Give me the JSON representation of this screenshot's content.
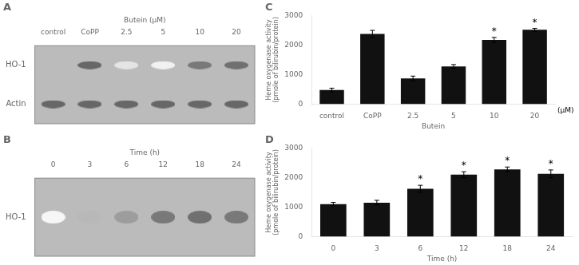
{
  "chart_data": [
    {
      "type": "heatmap",
      "title": "A",
      "categories": [
        "control",
        "CoPP",
        "2.5",
        "5",
        "10",
        "20"
      ],
      "xlabel": "Butein (μM)",
      "rows": [
        "HO-1",
        "Actin"
      ],
      "cells": [
        [
          0.0,
          0.85,
          0.15,
          0.08,
          0.75,
          0.8
        ],
        [
          0.85,
          0.85,
          0.85,
          0.85,
          0.85,
          0.85
        ]
      ],
      "grid": false
    },
    {
      "type": "heatmap",
      "title": "B",
      "categories": [
        "0",
        "3",
        "6",
        "12",
        "18",
        "24"
      ],
      "xlabel": "Time (h)",
      "rows": [
        "HO-1"
      ],
      "cells": [
        [
          0.05,
          0.4,
          0.55,
          0.75,
          0.8,
          0.75
        ]
      ],
      "grid": false
    },
    {
      "type": "bar",
      "title": "C",
      "categories": [
        "control",
        "CoPP",
        "2.5",
        "5",
        "10",
        "20"
      ],
      "values": [
        480,
        2380,
        870,
        1280,
        2180,
        2520
      ],
      "errors": [
        60,
        120,
        80,
        60,
        80,
        50
      ],
      "color": "#111111",
      "ylabel": "Heme oxygenase activity\n(pmole of bilirubin/protein)",
      "xlabel": "Butein",
      "ylim": [
        0,
        3000
      ],
      "yticks": [
        0,
        1000,
        2000,
        3000
      ],
      "annotations": [
        {
          "text": "*",
          "category": "10"
        },
        {
          "text": "*",
          "category": "20"
        },
        {
          "text": "(μM)"
        }
      ],
      "grid": false
    },
    {
      "type": "bar",
      "title": "D",
      "categories": [
        "0",
        "3",
        "6",
        "12",
        "18",
        "24"
      ],
      "values": [
        1100,
        1150,
        1620,
        2100,
        2280,
        2130
      ],
      "errors": [
        60,
        80,
        120,
        100,
        80,
        130
      ],
      "color": "#111111",
      "ylabel": "Heme oxygenase activity\n(pmole of bilirubin/protein)",
      "xlabel": "Time (h)",
      "ylim": [
        0,
        3000
      ],
      "yticks": [
        0,
        1000,
        2000,
        3000
      ],
      "annotations": [
        {
          "text": "*",
          "category": "6"
        },
        {
          "text": "*",
          "category": "12"
        },
        {
          "text": "*",
          "category": "18"
        },
        {
          "text": "*",
          "category": "24"
        }
      ],
      "grid": false
    }
  ]
}
